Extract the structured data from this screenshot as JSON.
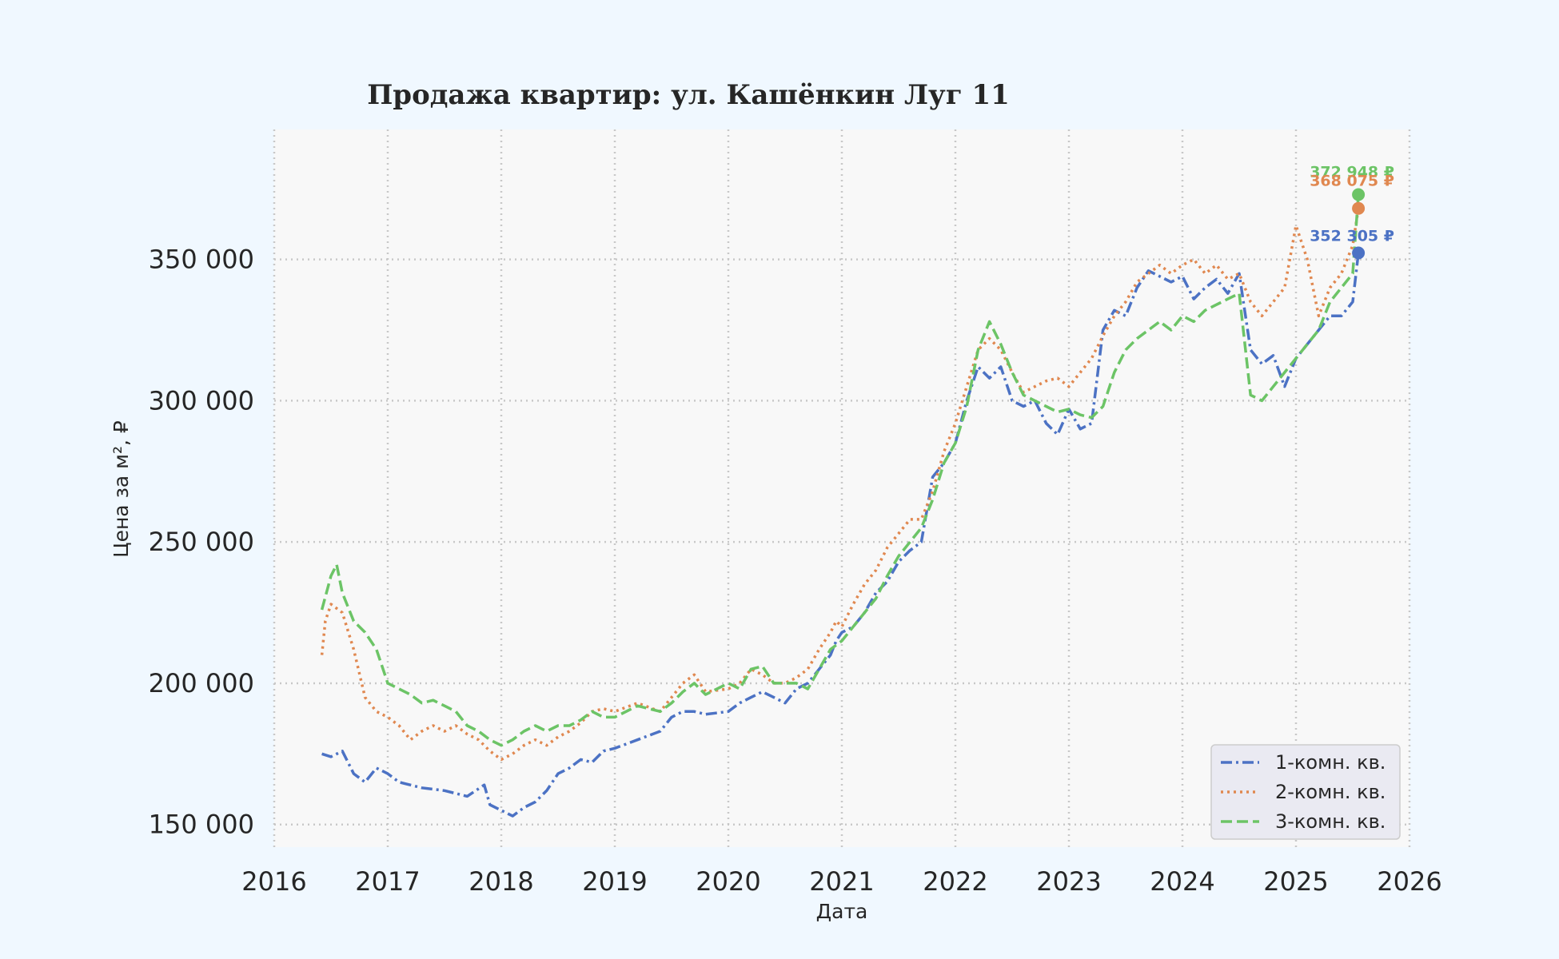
{
  "colors": {
    "page_background": "#f0f8ff",
    "plot_background": "#f8f8f8",
    "grid": "#c8c8c8",
    "text": "#262626"
  },
  "chart_data": {
    "type": "line",
    "title": "Продажа квартир: ул. Кашёнкин Луг 11",
    "xlabel": "Дата",
    "ylabel": "Цена за м², ₽",
    "xlim": [
      2016,
      2026
    ],
    "ylim": [
      142000,
      396000
    ],
    "x_ticks": [
      2016,
      2017,
      2018,
      2019,
      2020,
      2021,
      2022,
      2023,
      2024,
      2025,
      2026
    ],
    "y_ticks": [
      150000,
      200000,
      250000,
      300000,
      350000
    ],
    "y_tick_labels": [
      "150 000",
      "200 000",
      "250 000",
      "300 000",
      "350 000"
    ],
    "grid": true,
    "grid_style": "dotted",
    "legend_position": "bottom-right",
    "series": [
      {
        "name": "1-комн. кв.",
        "color": "#4c72c4",
        "style": "dash-dot",
        "x": [
          2016.42,
          2016.5,
          2016.6,
          2016.7,
          2016.8,
          2016.9,
          2017.0,
          2017.1,
          2017.3,
          2017.5,
          2017.7,
          2017.85,
          2017.9,
          2018.0,
          2018.1,
          2018.2,
          2018.3,
          2018.4,
          2018.5,
          2018.6,
          2018.7,
          2018.8,
          2018.9,
          2019.0,
          2019.2,
          2019.4,
          2019.5,
          2019.6,
          2019.7,
          2019.8,
          2020.0,
          2020.1,
          2020.2,
          2020.3,
          2020.4,
          2020.5,
          2020.6,
          2020.7,
          2020.8,
          2020.9,
          2020.95,
          2021.0,
          2021.1,
          2021.2,
          2021.3,
          2021.4,
          2021.5,
          2021.6,
          2021.7,
          2021.8,
          2021.9,
          2022.0,
          2022.1,
          2022.2,
          2022.3,
          2022.4,
          2022.5,
          2022.6,
          2022.7,
          2022.8,
          2022.9,
          2023.0,
          2023.1,
          2023.2,
          2023.3,
          2023.4,
          2023.5,
          2023.6,
          2023.7,
          2023.8,
          2023.9,
          2024.0,
          2024.1,
          2024.2,
          2024.3,
          2024.4,
          2024.5,
          2024.6,
          2024.7,
          2024.8,
          2024.9,
          2025.0,
          2025.1,
          2025.2,
          2025.3,
          2025.4,
          2025.5,
          2025.55
        ],
        "values": [
          175000,
          174000,
          176000,
          168000,
          165000,
          170000,
          168000,
          165000,
          163000,
          162000,
          160000,
          164000,
          157000,
          155000,
          153000,
          156000,
          158000,
          162000,
          168000,
          170000,
          173000,
          172000,
          176000,
          177000,
          180000,
          183000,
          188000,
          190000,
          190000,
          189000,
          190000,
          193000,
          195000,
          197000,
          195000,
          193000,
          198000,
          200000,
          205000,
          210000,
          215000,
          218000,
          220000,
          225000,
          232000,
          236000,
          243000,
          247000,
          250000,
          273000,
          278000,
          285000,
          300000,
          312000,
          308000,
          312000,
          300000,
          298000,
          300000,
          292000,
          288000,
          297000,
          290000,
          292000,
          325000,
          332000,
          330000,
          340000,
          346000,
          344000,
          342000,
          344000,
          336000,
          340000,
          343000,
          338000,
          345000,
          318000,
          313000,
          316000,
          305000,
          315000,
          320000,
          325000,
          330000,
          330000,
          335000,
          352305
        ]
      },
      {
        "name": "2-комн. кв.",
        "color": "#e08850",
        "style": "dotted",
        "x": [
          2016.42,
          2016.45,
          2016.5,
          2016.6,
          2016.7,
          2016.8,
          2016.9,
          2017.0,
          2017.1,
          2017.2,
          2017.3,
          2017.4,
          2017.5,
          2017.6,
          2017.7,
          2017.8,
          2017.9,
          2018.0,
          2018.1,
          2018.2,
          2018.3,
          2018.4,
          2018.5,
          2018.6,
          2018.7,
          2018.8,
          2018.9,
          2019.0,
          2019.2,
          2019.4,
          2019.5,
          2019.6,
          2019.7,
          2019.8,
          2020.0,
          2020.1,
          2020.2,
          2020.3,
          2020.4,
          2020.5,
          2020.6,
          2020.7,
          2020.8,
          2020.9,
          2020.95,
          2021.0,
          2021.1,
          2021.2,
          2021.3,
          2021.4,
          2021.5,
          2021.6,
          2021.7,
          2021.8,
          2021.9,
          2022.0,
          2022.1,
          2022.2,
          2022.3,
          2022.4,
          2022.5,
          2022.6,
          2022.7,
          2022.8,
          2022.9,
          2023.0,
          2023.1,
          2023.2,
          2023.3,
          2023.4,
          2023.5,
          2023.6,
          2023.7,
          2023.8,
          2023.9,
          2024.0,
          2024.1,
          2024.2,
          2024.3,
          2024.4,
          2024.5,
          2024.6,
          2024.7,
          2024.8,
          2024.9,
          2025.0,
          2025.1,
          2025.2,
          2025.3,
          2025.4,
          2025.5,
          2025.55
        ],
        "values": [
          210000,
          222000,
          228000,
          225000,
          212000,
          195000,
          190000,
          188000,
          185000,
          180000,
          183000,
          185000,
          183000,
          185000,
          182000,
          180000,
          176000,
          173000,
          175000,
          178000,
          180000,
          178000,
          181000,
          183000,
          186000,
          190000,
          191000,
          190000,
          193000,
          190000,
          195000,
          200000,
          203000,
          197000,
          198000,
          200000,
          205000,
          203000,
          200000,
          200000,
          202000,
          205000,
          212000,
          218000,
          222000,
          220000,
          228000,
          235000,
          240000,
          248000,
          253000,
          258000,
          258000,
          268000,
          282000,
          292000,
          305000,
          318000,
          322000,
          318000,
          310000,
          303000,
          305000,
          307000,
          308000,
          305000,
          310000,
          315000,
          323000,
          330000,
          335000,
          342000,
          345000,
          348000,
          345000,
          348000,
          350000,
          345000,
          348000,
          343000,
          345000,
          335000,
          330000,
          335000,
          340000,
          362000,
          350000,
          330000,
          340000,
          345000,
          355000,
          368075
        ]
      },
      {
        "name": "3-комн. кв.",
        "color": "#6cc466",
        "style": "dashed",
        "x": [
          2016.42,
          2016.5,
          2016.55,
          2016.6,
          2016.7,
          2016.8,
          2016.9,
          2017.0,
          2017.1,
          2017.2,
          2017.3,
          2017.4,
          2017.5,
          2017.6,
          2017.7,
          2017.8,
          2017.9,
          2018.0,
          2018.1,
          2018.2,
          2018.3,
          2018.4,
          2018.5,
          2018.6,
          2018.7,
          2018.8,
          2018.9,
          2019.0,
          2019.2,
          2019.4,
          2019.5,
          2019.6,
          2019.7,
          2019.8,
          2020.0,
          2020.1,
          2020.2,
          2020.3,
          2020.4,
          2020.5,
          2020.6,
          2020.7,
          2020.8,
          2020.9,
          2021.0,
          2021.1,
          2021.2,
          2021.3,
          2021.4,
          2021.5,
          2021.6,
          2021.7,
          2021.8,
          2021.9,
          2022.0,
          2022.1,
          2022.2,
          2022.3,
          2022.4,
          2022.5,
          2022.6,
          2022.7,
          2022.8,
          2022.9,
          2023.0,
          2023.1,
          2023.2,
          2023.3,
          2023.4,
          2023.5,
          2023.6,
          2023.7,
          2023.8,
          2023.9,
          2024.0,
          2024.1,
          2024.2,
          2024.3,
          2024.4,
          2024.5,
          2024.6,
          2024.7,
          2024.8,
          2024.9,
          2025.0,
          2025.1,
          2025.2,
          2025.3,
          2025.4,
          2025.5,
          2025.55
        ],
        "values": [
          226000,
          238000,
          242000,
          232000,
          222000,
          218000,
          212000,
          200000,
          198000,
          196000,
          193000,
          194000,
          192000,
          190000,
          185000,
          183000,
          180000,
          178000,
          180000,
          183000,
          185000,
          183000,
          185000,
          185000,
          187000,
          190000,
          188000,
          188000,
          192000,
          190000,
          193000,
          197000,
          200000,
          196000,
          200000,
          198000,
          205000,
          206000,
          200000,
          200000,
          200000,
          198000,
          205000,
          212000,
          215000,
          220000,
          225000,
          230000,
          238000,
          245000,
          250000,
          255000,
          265000,
          278000,
          285000,
          298000,
          318000,
          328000,
          320000,
          310000,
          302000,
          300000,
          298000,
          296000,
          297000,
          295000,
          294000,
          298000,
          310000,
          318000,
          322000,
          325000,
          328000,
          325000,
          330000,
          328000,
          332000,
          334000,
          336000,
          338000,
          302000,
          300000,
          305000,
          310000,
          315000,
          320000,
          325000,
          335000,
          340000,
          345000,
          372948
        ]
      }
    ],
    "end_labels": [
      {
        "series": "3-комн. кв.",
        "x": 2025.55,
        "value": 372948,
        "text": "372 948 ₽"
      },
      {
        "series": "2-комн. кв.",
        "x": 2025.55,
        "value": 368075,
        "text": "368 075 ₽"
      },
      {
        "series": "1-комн. кв.",
        "x": 2025.55,
        "value": 352305,
        "text": "352 305 ₽"
      }
    ]
  }
}
